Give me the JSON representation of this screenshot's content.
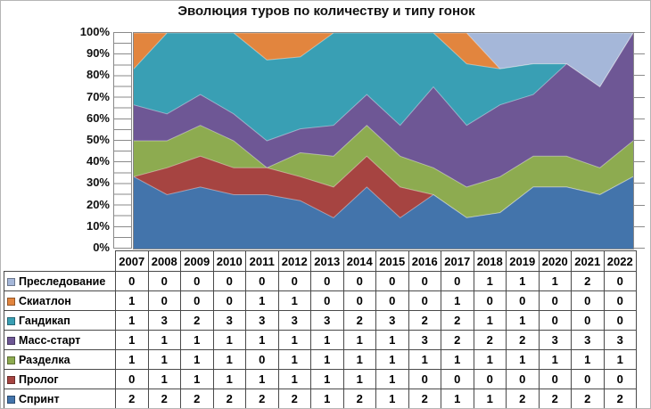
{
  "title": "Эволюция туров по количеству и типу гонок",
  "chart_data": {
    "type": "area",
    "stacked": true,
    "percent_stacked": true,
    "title": "Эволюция туров по количеству и типу гонок",
    "xlabel": "",
    "ylabel": "",
    "ylim": [
      "0%",
      "100%"
    ],
    "grid": false,
    "legend_position": "table-left",
    "y_ticks": [
      "100%",
      "90%",
      "80%",
      "70%",
      "60%",
      "50%",
      "40%",
      "30%",
      "20%",
      "10%",
      "0%"
    ],
    "categories": [
      "2007",
      "2008",
      "2009",
      "2010",
      "2011",
      "2012",
      "2013",
      "2014",
      "2015",
      "2016",
      "2017",
      "2018",
      "2019",
      "2020",
      "2021",
      "2022"
    ],
    "series": [
      {
        "name": "Преследование",
        "color": "#a5b7d9",
        "values": [
          0,
          0,
          0,
          0,
          0,
          0,
          0,
          0,
          0,
          0,
          0,
          1,
          1,
          1,
          2,
          0
        ]
      },
      {
        "name": "Скиатлон",
        "color": "#e2853e",
        "values": [
          1,
          0,
          0,
          0,
          1,
          1,
          0,
          0,
          0,
          0,
          1,
          0,
          0,
          0,
          0,
          0
        ]
      },
      {
        "name": "Гандикап",
        "color": "#399fb4",
        "values": [
          1,
          3,
          2,
          3,
          3,
          3,
          3,
          2,
          3,
          2,
          2,
          1,
          1,
          0,
          0,
          0
        ]
      },
      {
        "name": "Масс-старт",
        "color": "#6e5795",
        "values": [
          1,
          1,
          1,
          1,
          1,
          1,
          1,
          1,
          1,
          3,
          2,
          2,
          2,
          3,
          3,
          3
        ]
      },
      {
        "name": "Разделка",
        "color": "#8dab50",
        "values": [
          1,
          1,
          1,
          1,
          0,
          1,
          1,
          1,
          1,
          1,
          1,
          1,
          1,
          1,
          1,
          1
        ]
      },
      {
        "name": "Пролог",
        "color": "#a64441",
        "values": [
          0,
          1,
          1,
          1,
          1,
          1,
          1,
          1,
          1,
          0,
          0,
          0,
          0,
          0,
          0,
          0
        ]
      },
      {
        "name": "Спринт",
        "color": "#4374ab",
        "values": [
          2,
          2,
          2,
          2,
          2,
          2,
          1,
          2,
          1,
          2,
          1,
          1,
          2,
          2,
          2,
          2
        ]
      }
    ]
  }
}
